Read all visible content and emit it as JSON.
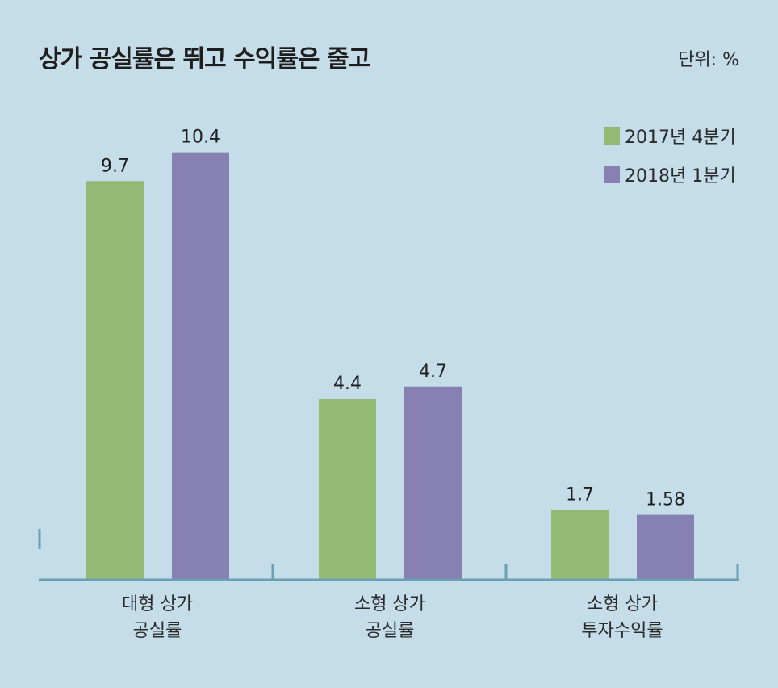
{
  "title": "상가 공실률은 뛰고 수익률은 줄고",
  "unit": "단위: %",
  "colors": {
    "background": "#c5dde9",
    "series1": "#93ba74",
    "series2": "#8780b3",
    "axis": "#6a9fb4"
  },
  "chart_data": {
    "type": "bar",
    "title": "상가 공실률은 뛰고 수익률은 줄고",
    "unit": "단위: %",
    "legend_position": "top-right",
    "categories": [
      [
        "대형 상가",
        "공실률"
      ],
      [
        "소형 상가",
        "공실률"
      ],
      [
        "소형 상가",
        "투자수익률"
      ]
    ],
    "series": [
      {
        "name": "2017년 4분기",
        "values": [
          9.7,
          4.4,
          1.7
        ],
        "labels": [
          "9.7",
          "4.4",
          "1.7"
        ],
        "color": "#93ba74"
      },
      {
        "name": "2018년 1분기",
        "values": [
          10.4,
          4.7,
          1.58
        ],
        "labels": [
          "10.4",
          "4.7",
          "1.58"
        ],
        "color": "#8780b3"
      }
    ],
    "ylim": [
      0,
      10.4
    ],
    "grid": false
  }
}
